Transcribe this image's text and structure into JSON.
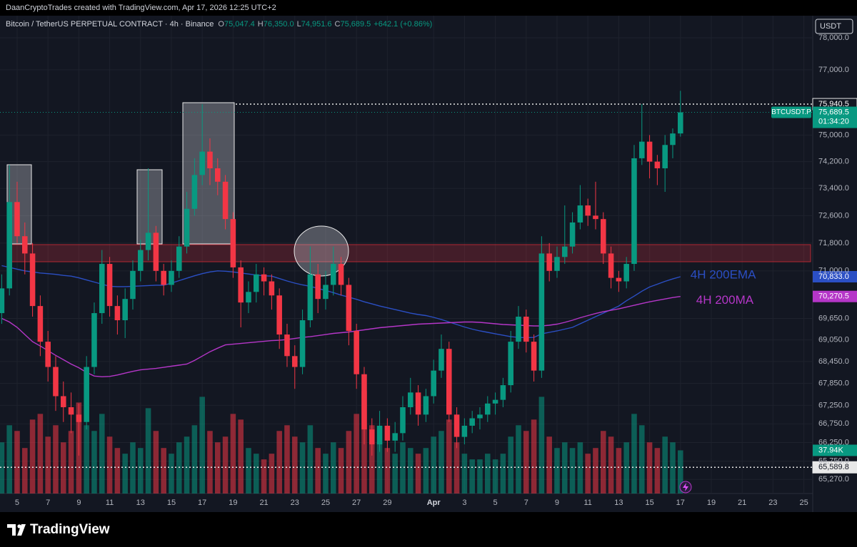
{
  "header": {
    "credit": "DaanCryptoTrades created with TradingView.com, Apr 17, 2026 12:25 UTC+2"
  },
  "footer": {
    "logo": "TradingView"
  },
  "chart_data": {
    "type": "candlestick",
    "symbol": "Bitcoin / TetherUS PERPETUAL CONTRACT · 4h · Binance",
    "ohlc": [
      {
        "key": "O",
        "value": "75,047.4"
      },
      {
        "key": "H",
        "value": "76,350.0"
      },
      {
        "key": "L",
        "value": "74,951.6"
      },
      {
        "key": "C",
        "value": "75,689.5"
      }
    ],
    "change": "+642.1 (+0.86%)",
    "currency": "USDT",
    "log_scale": true,
    "up_color": "#089981",
    "down_color": "#f23645",
    "ylim": [
      64900,
      78700
    ],
    "yticks": [
      {
        "value": 78000,
        "label": "78,000.0"
      },
      {
        "value": 77000,
        "label": "77,000.0"
      },
      {
        "value": 75000,
        "label": "75,000.0"
      },
      {
        "value": 74200,
        "label": "74,200.0"
      },
      {
        "value": 73400,
        "label": "73,400.0"
      },
      {
        "value": 72600,
        "label": "72,600.0"
      },
      {
        "value": 71800,
        "label": "71,800.0"
      },
      {
        "value": 71000,
        "label": "71,000.0"
      },
      {
        "value": 69650,
        "label": "69,650.0"
      },
      {
        "value": 69050,
        "label": "69,050.0"
      },
      {
        "value": 68450,
        "label": "68,450.0"
      },
      {
        "value": 67850,
        "label": "67,850.0"
      },
      {
        "value": 67250,
        "label": "67,250.0"
      },
      {
        "value": 66750,
        "label": "66,750.0"
      },
      {
        "value": 66250,
        "label": "66,250.0"
      },
      {
        "value": 65750,
        "label": "65,750.0"
      },
      {
        "value": 65270,
        "label": "65,270.0"
      }
    ],
    "xlim": [
      -0.22,
      105.15
    ],
    "xticks": [
      {
        "value": 2,
        "label": "5"
      },
      {
        "value": 6,
        "label": "7"
      },
      {
        "value": 10,
        "label": "9"
      },
      {
        "value": 14,
        "label": "11"
      },
      {
        "value": 18,
        "label": "13"
      },
      {
        "value": 22,
        "label": "15"
      },
      {
        "value": 26,
        "label": "17"
      },
      {
        "value": 30,
        "label": "19"
      },
      {
        "value": 34,
        "label": "21"
      },
      {
        "value": 38,
        "label": "23"
      },
      {
        "value": 42,
        "label": "25"
      },
      {
        "value": 46,
        "label": "27"
      },
      {
        "value": 50,
        "label": "29"
      },
      {
        "value": 56,
        "label": "Apr"
      },
      {
        "value": 60,
        "label": "3"
      },
      {
        "value": 64,
        "label": "5"
      },
      {
        "value": 68,
        "label": "7"
      },
      {
        "value": 72,
        "label": "9"
      },
      {
        "value": 76,
        "label": "11"
      },
      {
        "value": 80,
        "label": "13"
      },
      {
        "value": 84,
        "label": "15"
      },
      {
        "value": 88,
        "label": "17"
      },
      {
        "value": 92,
        "label": "19"
      },
      {
        "value": 96,
        "label": "21"
      },
      {
        "value": 100,
        "label": "23"
      },
      {
        "value": 104,
        "label": "25"
      }
    ],
    "candles": [
      [
        69800,
        70900,
        69500,
        70500
      ],
      [
        70500,
        74100,
        70300,
        73000
      ],
      [
        73000,
        73600,
        71800,
        72000
      ],
      [
        72000,
        72400,
        70900,
        71500
      ],
      [
        71500,
        71800,
        69700,
        70000
      ],
      [
        70000,
        70300,
        68600,
        69000
      ],
      [
        69000,
        69300,
        67900,
        68300
      ],
      [
        68300,
        68600,
        67100,
        67500
      ],
      [
        67500,
        67900,
        66800,
        67200
      ],
      [
        67200,
        67600,
        66500,
        67000
      ],
      [
        67000,
        67300,
        65900,
        66800
      ],
      [
        66800,
        68600,
        66600,
        68300
      ],
      [
        68300,
        70100,
        68100,
        69800
      ],
      [
        69800,
        71600,
        69500,
        71200
      ],
      [
        71200,
        71400,
        69700,
        70000
      ],
      [
        70000,
        70300,
        69200,
        69600
      ],
      [
        69600,
        70500,
        69100,
        70200
      ],
      [
        70200,
        71300,
        69900,
        71000
      ],
      [
        71000,
        71900,
        70700,
        71600
      ],
      [
        71600,
        74000,
        71300,
        72100
      ],
      [
        72100,
        72300,
        70700,
        71000
      ],
      [
        71000,
        71200,
        70300,
        70600
      ],
      [
        70600,
        71300,
        70400,
        71000
      ],
      [
        71000,
        72000,
        70800,
        71700
      ],
      [
        71700,
        73300,
        71500,
        72800
      ],
      [
        72800,
        74300,
        72600,
        73800
      ],
      [
        73800,
        75940,
        73500,
        74500
      ],
      [
        74500,
        74900,
        73500,
        74000
      ],
      [
        74000,
        74300,
        73200,
        73600
      ],
      [
        73600,
        73800,
        72200,
        72500
      ],
      [
        72500,
        72700,
        70800,
        71100
      ],
      [
        71100,
        71300,
        69400,
        70100
      ],
      [
        70100,
        70700,
        69800,
        70400
      ],
      [
        70400,
        71200,
        70100,
        70900
      ],
      [
        70900,
        71100,
        70300,
        70700
      ],
      [
        70700,
        70900,
        69900,
        70300
      ],
      [
        70300,
        70500,
        68800,
        69200
      ],
      [
        69200,
        69500,
        68300,
        68600
      ],
      [
        68600,
        68900,
        67700,
        68300
      ],
      [
        68300,
        69900,
        68100,
        69600
      ],
      [
        69600,
        71700,
        69400,
        70900
      ],
      [
        70900,
        71200,
        69800,
        70200
      ],
      [
        70200,
        71000,
        69900,
        70600
      ],
      [
        70600,
        71700,
        70300,
        71200
      ],
      [
        71200,
        71400,
        70300,
        70600
      ],
      [
        70600,
        70800,
        68900,
        69300
      ],
      [
        69300,
        69500,
        67700,
        68100
      ],
      [
        68100,
        68300,
        66200,
        66600
      ],
      [
        66600,
        66900,
        65900,
        66200
      ],
      [
        66200,
        67100,
        66000,
        66700
      ],
      [
        66700,
        66900,
        66000,
        66300
      ],
      [
        66300,
        66800,
        66000,
        66500
      ],
      [
        66500,
        67500,
        66300,
        67200
      ],
      [
        67200,
        68000,
        67000,
        67600
      ],
      [
        67600,
        67800,
        66700,
        67000
      ],
      [
        67000,
        67700,
        66800,
        67500
      ],
      [
        67500,
        68500,
        67300,
        68200
      ],
      [
        68200,
        69200,
        68000,
        68800
      ],
      [
        68800,
        69000,
        66800,
        67000
      ],
      [
        67000,
        67200,
        66100,
        66400
      ],
      [
        66400,
        66900,
        66200,
        66700
      ],
      [
        66700,
        67100,
        66500,
        66900
      ],
      [
        66900,
        67200,
        66600,
        67000
      ],
      [
        67000,
        67500,
        66800,
        67300
      ],
      [
        67300,
        67600,
        67000,
        67400
      ],
      [
        67400,
        68000,
        67200,
        67800
      ],
      [
        67800,
        69300,
        67600,
        69000
      ],
      [
        69000,
        70000,
        68800,
        69700
      ],
      [
        69700,
        69900,
        68700,
        69000
      ],
      [
        69000,
        69200,
        67900,
        68200
      ],
      [
        68200,
        72000,
        68000,
        71500
      ],
      [
        71500,
        71800,
        70700,
        71000
      ],
      [
        71000,
        71700,
        70800,
        71400
      ],
      [
        71400,
        72900,
        71200,
        71700
      ],
      [
        71700,
        72700,
        71500,
        72400
      ],
      [
        72400,
        73500,
        72200,
        72900
      ],
      [
        72900,
        73100,
        72300,
        72600
      ],
      [
        72600,
        73600,
        72200,
        72500
      ],
      [
        72500,
        72700,
        71200,
        71500
      ],
      [
        71500,
        71700,
        70500,
        70800
      ],
      [
        70800,
        71000,
        70400,
        70700
      ],
      [
        70700,
        71400,
        70500,
        71200
      ],
      [
        71200,
        74700,
        71000,
        74300
      ],
      [
        74300,
        75940,
        74100,
        74800
      ],
      [
        74800,
        75000,
        73700,
        74200
      ],
      [
        74200,
        74400,
        73500,
        74000
      ],
      [
        74000,
        75000,
        73300,
        74700
      ],
      [
        74700,
        75200,
        74300,
        75047.4
      ],
      [
        75047.4,
        76350,
        74951.6,
        75689.5
      ]
    ],
    "volume": [
      45,
      60,
      55,
      40,
      65,
      70,
      50,
      60,
      45,
      55,
      80,
      60,
      55,
      70,
      50,
      40,
      35,
      45,
      40,
      75,
      55,
      40,
      35,
      45,
      50,
      60,
      85,
      55,
      45,
      50,
      70,
      65,
      40,
      35,
      30,
      35,
      55,
      60,
      50,
      45,
      60,
      40,
      35,
      45,
      40,
      55,
      70,
      90,
      60,
      45,
      40,
      35,
      45,
      40,
      35,
      40,
      50,
      55,
      65,
      45,
      35,
      30,
      30,
      35,
      30,
      35,
      50,
      60,
      55,
      65,
      85,
      50,
      40,
      45,
      40,
      45,
      35,
      40,
      55,
      50,
      40,
      45,
      70,
      60,
      45,
      40,
      50,
      45,
      37.94
    ],
    "volume_lim": [
      0,
      420
    ],
    "volume_label": "37.94K",
    "series": [
      {
        "name": "4H 200EMA",
        "color": "#2b4fc4",
        "last_label": "70,833.0",
        "values": [
          71150,
          71100,
          71050,
          71000,
          70970,
          70940,
          70920,
          70900,
          70870,
          70850,
          70800,
          70740,
          70680,
          70620,
          70560,
          70550,
          70550,
          70560,
          70570,
          70580,
          70590,
          70590,
          70650,
          70720,
          70790,
          70860,
          70920,
          70970,
          71000,
          70990,
          70970,
          70940,
          70910,
          70880,
          70860,
          70850,
          70780,
          70710,
          70650,
          70600,
          70560,
          70500,
          70440,
          70380,
          70310,
          70250,
          70190,
          70120,
          70060,
          70000,
          69950,
          69900,
          69850,
          69800,
          69760,
          69730,
          69680,
          69620,
          69550,
          69480,
          69410,
          69350,
          69300,
          69260,
          69220,
          69180,
          69140,
          69120,
          69110,
          69120,
          69220,
          69260,
          69300,
          69350,
          69400,
          69500,
          69600,
          69700,
          69800,
          69900,
          70000,
          70150,
          70280,
          70420,
          70540,
          70620,
          70700,
          70770,
          70833
        ]
      },
      {
        "name": "4H 200MA",
        "color": "#b536c8",
        "last_label": "70,270.5",
        "values": [
          69650,
          69550,
          69400,
          69200,
          69000,
          68880,
          68750,
          68620,
          68500,
          68380,
          68280,
          68150,
          68050,
          68030,
          68040,
          68080,
          68130,
          68180,
          68220,
          68240,
          68260,
          68290,
          68320,
          68350,
          68380,
          68480,
          68600,
          68720,
          68820,
          68910,
          68930,
          68950,
          68970,
          68990,
          69010,
          69030,
          69040,
          69060,
          69090,
          69120,
          69140,
          69170,
          69200,
          69230,
          69250,
          69270,
          69300,
          69330,
          69360,
          69390,
          69410,
          69430,
          69450,
          69470,
          69490,
          69500,
          69510,
          69520,
          69530,
          69540,
          69550,
          69550,
          69540,
          69520,
          69500,
          69480,
          69470,
          69460,
          69450,
          69440,
          69440,
          69460,
          69490,
          69540,
          69600,
          69670,
          69730,
          69790,
          69840,
          69880,
          69920,
          69970,
          70020,
          70070,
          70120,
          70160,
          70200,
          70240,
          70270.5
        ]
      }
    ],
    "levels": [
      {
        "value": 75940.5,
        "label": "75,940.5"
      },
      {
        "value": 65589.8,
        "label": "65,589.8"
      }
    ],
    "price": {
      "value": 75689.5,
      "label": "75,689.5"
    },
    "countdown": "01:34:20",
    "symbol_tag": "BTCUSDT.P"
  }
}
